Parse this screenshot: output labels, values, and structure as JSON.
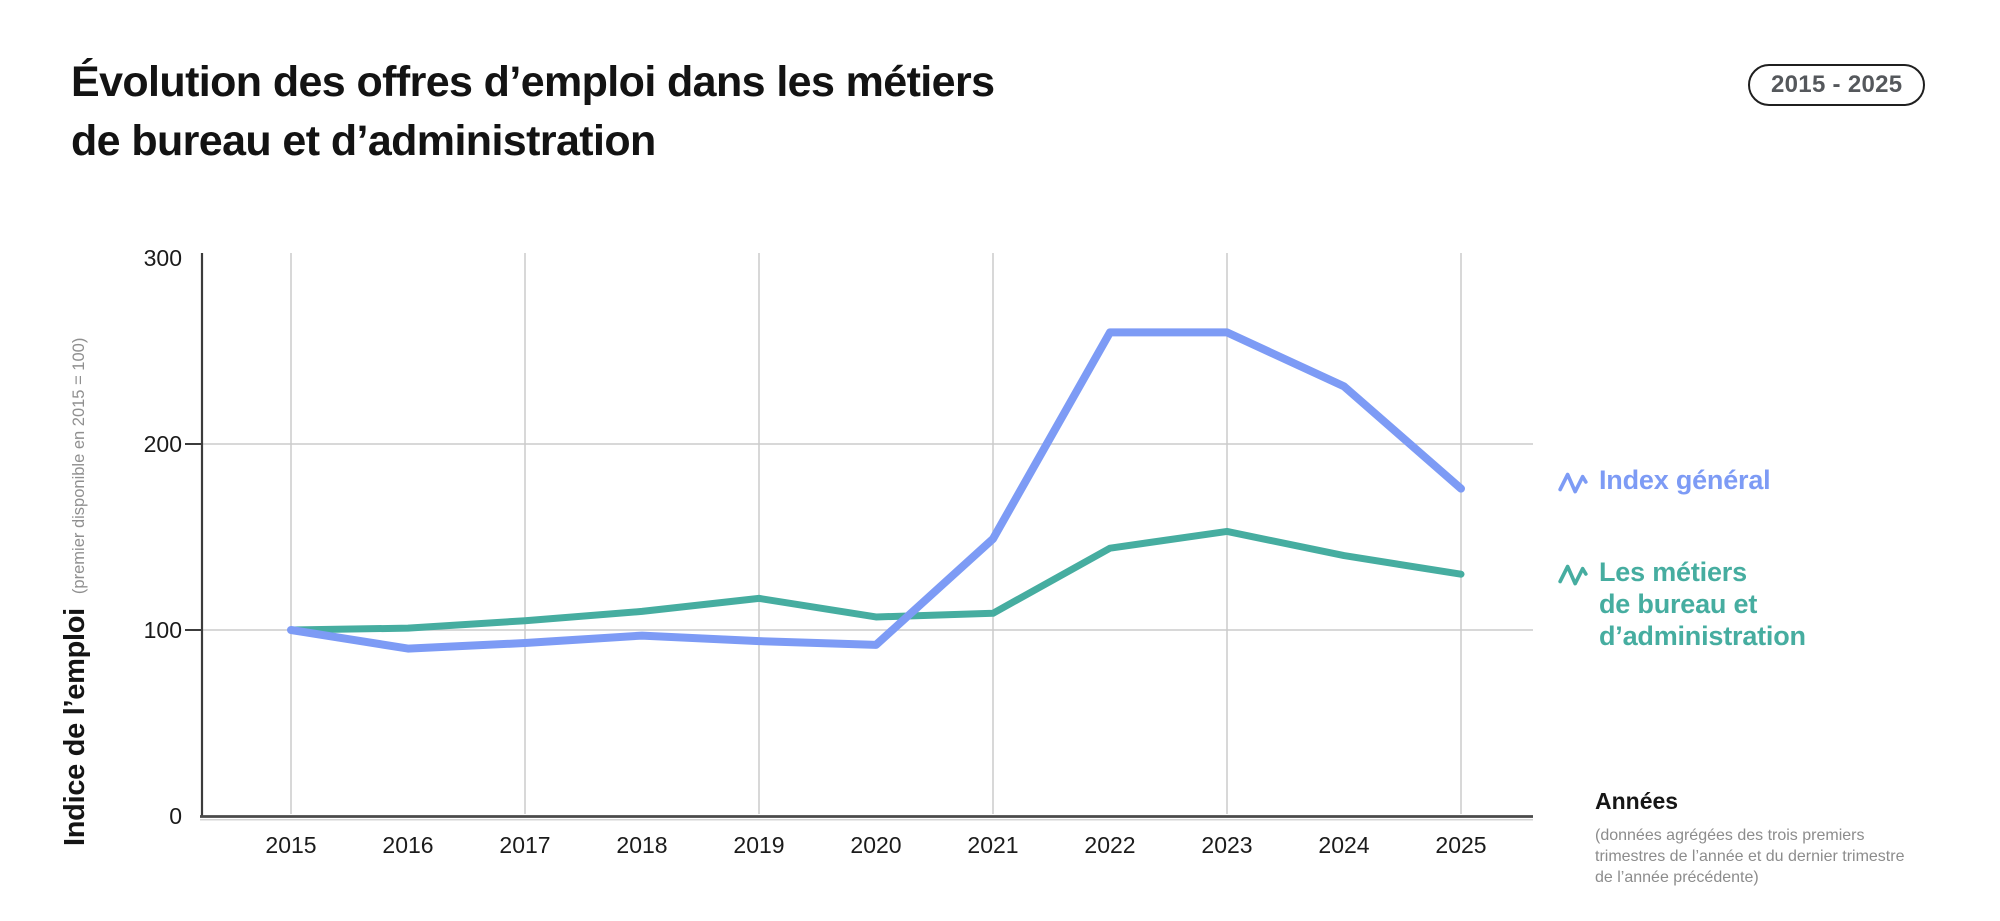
{
  "header": {
    "title_line1": "Évolution des offres d’emploi dans les métiers",
    "title_line2": "de bureau et d’administration",
    "period_badge": "2015 - 2025"
  },
  "y_axis": {
    "label": "Indice de l’emploi",
    "label_note": "(premier disponible en 2015 = 100)",
    "tick_labels": [
      "0",
      "100",
      "200",
      "300"
    ]
  },
  "x_axis": {
    "title": "Années",
    "note_lines": [
      "(données agrégées des trois premiers",
      "trimestres de l’année et du dernier trimestre",
      "de l’année précédente)"
    ]
  },
  "legend": {
    "items": [
      {
        "icon": "sparkline-icon",
        "color": "#7d9bf5",
        "label_lines": [
          "Index général"
        ]
      },
      {
        "icon": "sparkline-icon",
        "color": "#46ada0",
        "label_lines": [
          "Les métiers",
          "de bureau et",
          "d’administration"
        ]
      }
    ]
  },
  "chart_data": {
    "type": "line",
    "title": "Évolution des offres d’emploi dans les métiers de bureau et d’administration",
    "subtitle_badge": "2015 - 2025",
    "x": [
      "2015",
      "2016",
      "2017",
      "2018",
      "2019",
      "2020",
      "2021",
      "2022",
      "2023",
      "2024",
      "2025"
    ],
    "series": [
      {
        "name": "Index général",
        "color": "#7d9bf5",
        "stroke_width": 8,
        "values": [
          100,
          90,
          93,
          97,
          94,
          92,
          149,
          260,
          260,
          231,
          176
        ]
      },
      {
        "name": "Les métiers de bureau et d’administration",
        "color": "#46ada0",
        "stroke_width": 7,
        "values": [
          100,
          101,
          105,
          110,
          117,
          107,
          109,
          144,
          153,
          140,
          130
        ]
      }
    ],
    "xlabel": "Années",
    "ylabel": "Indice de l’emploi (premier disponible en 2015 = 100)",
    "ylim": [
      0,
      300
    ],
    "yticks": [
      0,
      100,
      200,
      300
    ],
    "grid": {
      "horizontal_at": [
        100,
        200
      ],
      "vertical_at_years": [
        "2015",
        "2017",
        "2019",
        "2021",
        "2023",
        "2025"
      ]
    },
    "legend_position": "right",
    "grid_color": "#cbcbcb",
    "axis_color": "#3c3c3c"
  }
}
